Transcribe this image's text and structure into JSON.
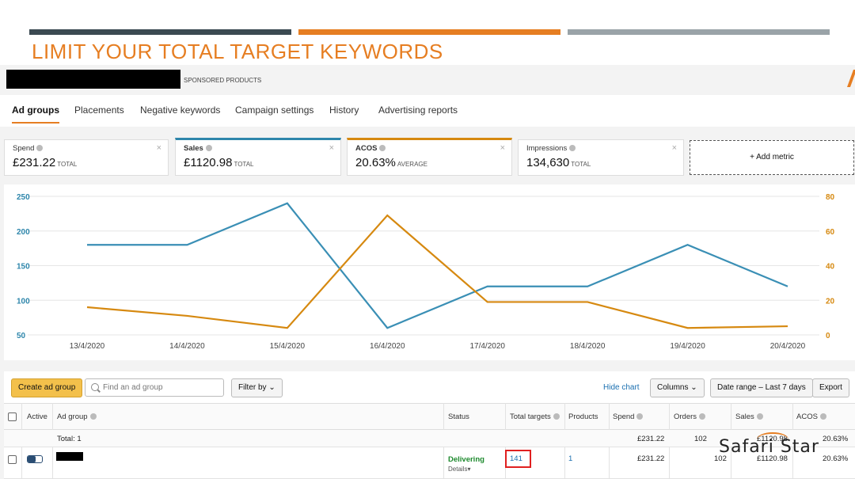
{
  "slide": {
    "title": "LIMIT YOUR TOTAL TARGET KEYWORDS",
    "bar_colors": [
      "#3b4a52",
      "#e67e22",
      "#9aa3a8"
    ]
  },
  "campaign": {
    "type_label": "SPONSORED PRODUCTS"
  },
  "tabs": [
    {
      "label": "Ad groups",
      "active": true
    },
    {
      "label": "Placements"
    },
    {
      "label": "Negative keywords"
    },
    {
      "label": "Campaign settings"
    },
    {
      "label": "History"
    },
    {
      "label": "Advertising reports"
    }
  ],
  "metrics": [
    {
      "label": "Spend",
      "value": "£231.22",
      "suffix": "TOTAL"
    },
    {
      "label": "Sales",
      "value": "£1120.98",
      "suffix": "TOTAL",
      "color": "#2e86ab"
    },
    {
      "label": "ACOS",
      "value": "20.63%",
      "suffix": "AVERAGE",
      "color": "#d68910"
    },
    {
      "label": "Impressions",
      "value": "134,630",
      "suffix": "TOTAL"
    }
  ],
  "add_metric_label": "+ Add metric",
  "chart_data": {
    "type": "line",
    "x": [
      "13/4/2020",
      "14/4/2020",
      "15/4/2020",
      "16/4/2020",
      "17/4/2020",
      "18/4/2020",
      "19/4/2020",
      "20/4/2020"
    ],
    "series": [
      {
        "values": [
          180,
          180,
          240,
          60,
          120,
          120,
          180,
          120
        ],
        "color": "#3a8fb5",
        "axis": "left"
      },
      {
        "values": [
          16,
          11,
          4,
          69,
          19,
          19,
          4,
          5
        ],
        "color": "#d68910",
        "axis": "right"
      }
    ],
    "yleft": {
      "ticks": [
        50,
        100,
        150,
        200,
        250
      ],
      "range": [
        50,
        250
      ]
    },
    "yright": {
      "ticks": [
        0,
        20,
        40,
        60,
        80
      ],
      "range": [
        0,
        80
      ]
    },
    "grid": true
  },
  "toolbar": {
    "create_label": "Create ad group",
    "search_placeholder": "Find an ad group",
    "filter_label": "Filter by",
    "hide_chart": "Hide chart",
    "columns": "Columns",
    "date_range": "Date range – Last 7 days",
    "export": "Export"
  },
  "table": {
    "headers": [
      "Active",
      "Ad group",
      "Status",
      "Total targets",
      "Products",
      "Spend",
      "Orders",
      "Sales",
      "ACOS"
    ],
    "total_row": {
      "label": "Total: 1",
      "spend": "£231.22",
      "orders": "102",
      "sales": "£1120.98",
      "acos": "20.63%"
    },
    "rows": [
      {
        "status": "Delivering",
        "details": "Details▾",
        "total_targets": "141",
        "products": "1",
        "spend": "£231.22",
        "orders": "102",
        "sales": "£1120.98",
        "acos": "20.63%"
      }
    ]
  },
  "watermark": "Safari Star"
}
